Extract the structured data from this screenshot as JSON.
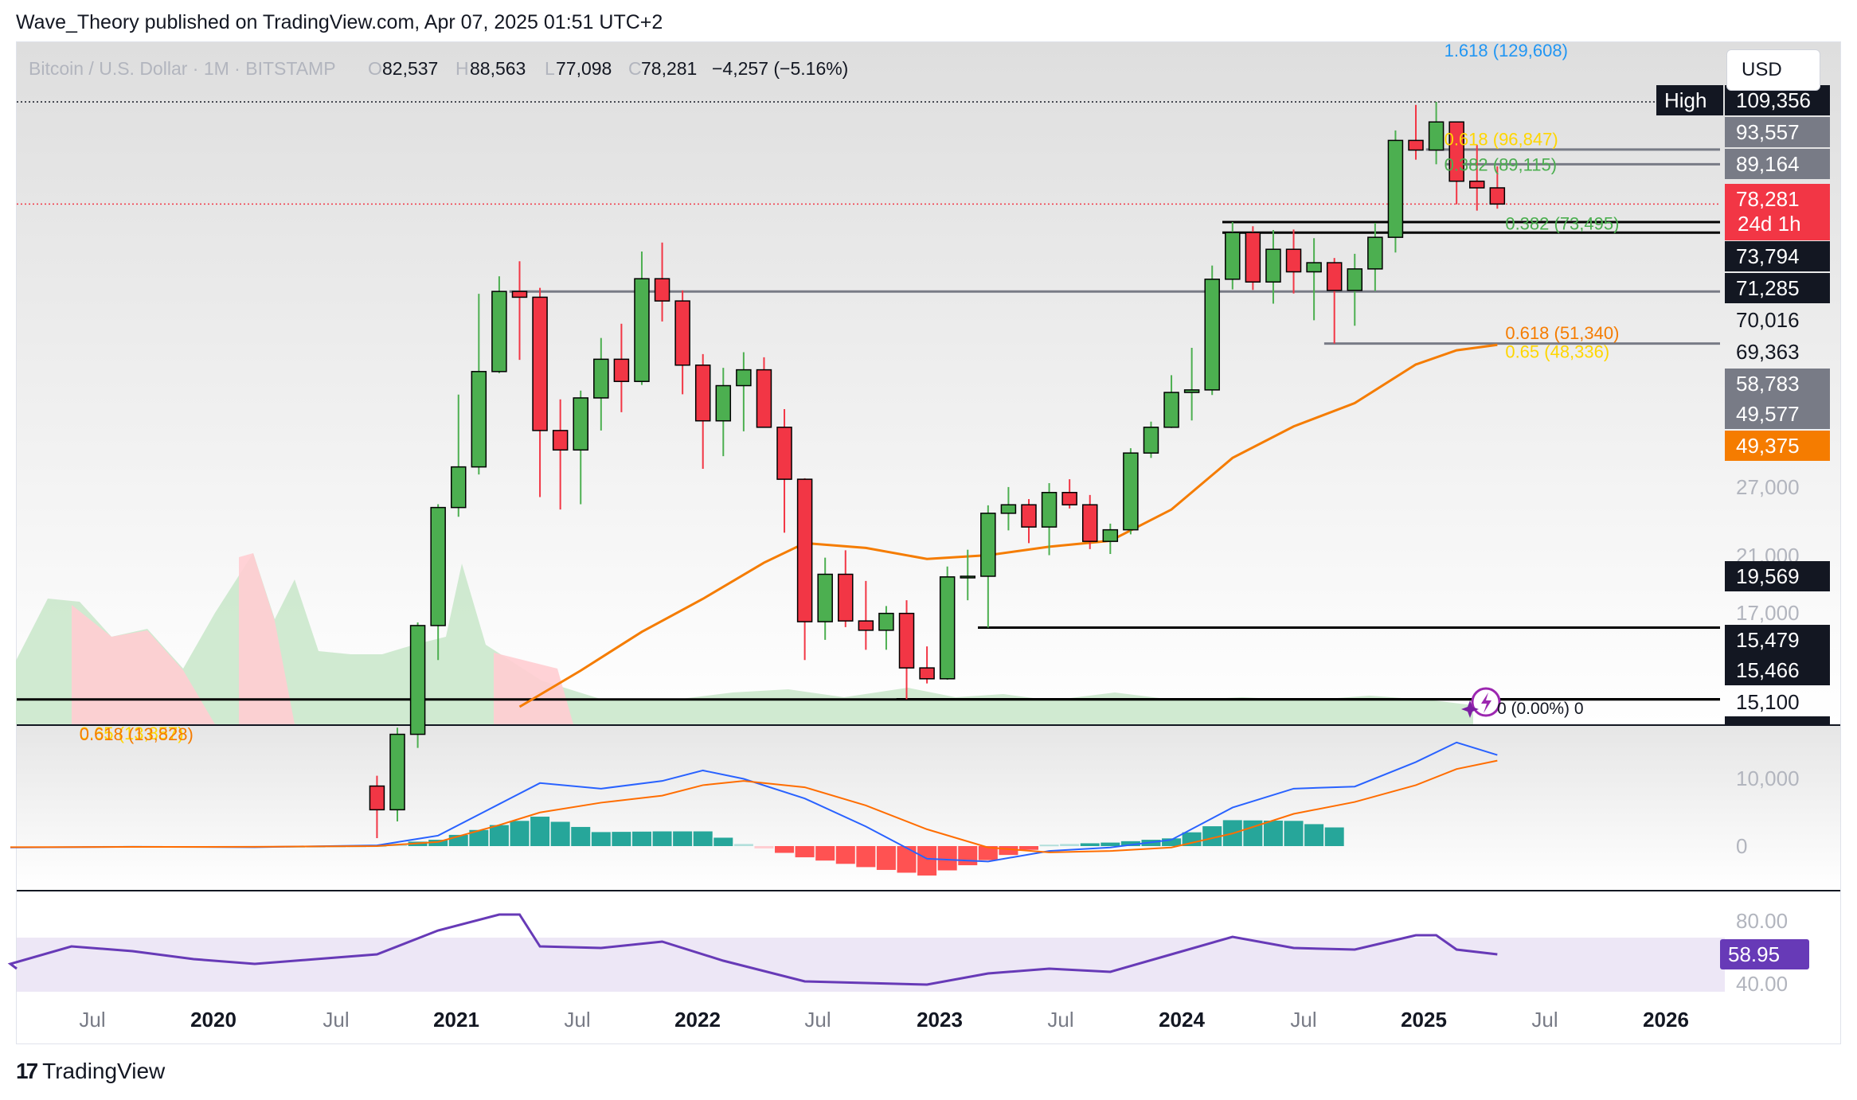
{
  "caption": "Wave_Theory published on TradingView.com, Apr 07, 2025 01:51 UTC+2",
  "header": {
    "symbol": "Bitcoin / U.S. Dollar · 1M · BITSTAMP",
    "o_label": "O",
    "o_value": "82,537",
    "h_label": "H",
    "h_value": "88,563",
    "l_label": "L",
    "l_value": "77,098",
    "c_label": "C",
    "c_value": "78,281",
    "change": "−4,257 (−5.16%)"
  },
  "currency": "USD",
  "footer": {
    "brand": "TradingView",
    "mark": "17"
  },
  "colors": {
    "up": "#4caf50",
    "down": "#f23645",
    "ema": "#f57c00",
    "macd_line": "#2962ff",
    "signal_line": "#ff6d00",
    "hist_up_strong": "#26a69a",
    "hist_up_weak": "#b2dfdb",
    "hist_down_strong": "#ff5252",
    "hist_down_weak": "#ffcdd2",
    "rsi": "#673ab7",
    "fib_green": "#4caf50",
    "fib_orange": "#f57c00",
    "fib_yellow": "#ffd600",
    "fib_blue": "#2196f3"
  },
  "chart_data": {
    "type": "candlestick",
    "title": "Bitcoin / U.S. Dollar · 1M · BITSTAMP",
    "x_ticks": [
      "Jul",
      "2020",
      "Jul",
      "2021",
      "Jul",
      "2022",
      "Jul",
      "2023",
      "Jul",
      "2024",
      "Jul",
      "2025",
      "Jul",
      "2026"
    ],
    "y_scale": "log",
    "price_axis_labels": [
      "109,356",
      "93,557",
      "89,164",
      "78,281",
      "73,794",
      "71,285",
      "70,016",
      "69,363",
      "58,783",
      "49,577",
      "49,375",
      "27,000",
      "21,000",
      "19,569",
      "17,000",
      "15,479",
      "15,466",
      "15,100"
    ],
    "high_label": "High",
    "countdown": "24d 1h",
    "candles": [
      {
        "date": "2020-09",
        "o": 11650,
        "h": 12050,
        "l": 9825,
        "c": 10780
      },
      {
        "date": "2020-10",
        "o": 10780,
        "h": 14100,
        "l": 10375,
        "c": 13800
      },
      {
        "date": "2020-11",
        "o": 13800,
        "h": 19900,
        "l": 13200,
        "c": 19700
      },
      {
        "date": "2020-12",
        "o": 19700,
        "h": 29300,
        "l": 17600,
        "c": 28990
      },
      {
        "date": "2021-01",
        "o": 28990,
        "h": 41950,
        "l": 28130,
        "c": 33110
      },
      {
        "date": "2021-02",
        "o": 33110,
        "h": 58350,
        "l": 32300,
        "c": 45240
      },
      {
        "date": "2021-03",
        "o": 45240,
        "h": 61800,
        "l": 45000,
        "c": 58800
      },
      {
        "date": "2021-04",
        "o": 58800,
        "h": 64900,
        "l": 47000,
        "c": 57700
      },
      {
        "date": "2021-05",
        "o": 57700,
        "h": 59500,
        "l": 30000,
        "c": 37300
      },
      {
        "date": "2021-06",
        "o": 37300,
        "h": 41300,
        "l": 28800,
        "c": 35000
      },
      {
        "date": "2021-07",
        "o": 35000,
        "h": 42500,
        "l": 29300,
        "c": 41500
      },
      {
        "date": "2021-08",
        "o": 41500,
        "h": 50500,
        "l": 37300,
        "c": 47100
      },
      {
        "date": "2021-09",
        "o": 47100,
        "h": 52900,
        "l": 39600,
        "c": 43800
      },
      {
        "date": "2021-10",
        "o": 43800,
        "h": 67000,
        "l": 43300,
        "c": 61300
      },
      {
        "date": "2021-11",
        "o": 61300,
        "h": 69000,
        "l": 53300,
        "c": 57000
      },
      {
        "date": "2021-12",
        "o": 57000,
        "h": 59000,
        "l": 42000,
        "c": 46200
      },
      {
        "date": "2022-01",
        "o": 46200,
        "h": 47900,
        "l": 32900,
        "c": 38500
      },
      {
        "date": "2022-02",
        "o": 38500,
        "h": 45800,
        "l": 34300,
        "c": 43200
      },
      {
        "date": "2022-03",
        "o": 43200,
        "h": 48200,
        "l": 37200,
        "c": 45500
      },
      {
        "date": "2022-04",
        "o": 45500,
        "h": 47400,
        "l": 37700,
        "c": 37700
      },
      {
        "date": "2022-05",
        "o": 37700,
        "h": 40000,
        "l": 26700,
        "c": 31800
      },
      {
        "date": "2022-06",
        "o": 31800,
        "h": 31900,
        "l": 17600,
        "c": 19950
      },
      {
        "date": "2022-07",
        "o": 19950,
        "h": 24600,
        "l": 18800,
        "c": 23300
      },
      {
        "date": "2022-08",
        "o": 23300,
        "h": 25200,
        "l": 19600,
        "c": 20000
      },
      {
        "date": "2022-09",
        "o": 20000,
        "h": 22800,
        "l": 18200,
        "c": 19400
      },
      {
        "date": "2022-10",
        "o": 19400,
        "h": 21000,
        "l": 18200,
        "c": 20500
      },
      {
        "date": "2022-11",
        "o": 20500,
        "h": 21400,
        "l": 15479,
        "c": 17150
      },
      {
        "date": "2022-12",
        "o": 17150,
        "h": 18400,
        "l": 16300,
        "c": 16550
      },
      {
        "date": "2023-01",
        "o": 16550,
        "h": 23900,
        "l": 16500,
        "c": 23100
      },
      {
        "date": "2023-02",
        "o": 23100,
        "h": 25250,
        "l": 21400,
        "c": 23150
      },
      {
        "date": "2023-03",
        "o": 23150,
        "h": 29200,
        "l": 19569,
        "c": 28450
      },
      {
        "date": "2023-04",
        "o": 28450,
        "h": 31000,
        "l": 26900,
        "c": 29250
      },
      {
        "date": "2023-05",
        "o": 29250,
        "h": 29800,
        "l": 25800,
        "c": 27200
      },
      {
        "date": "2023-06",
        "o": 27200,
        "h": 31400,
        "l": 24800,
        "c": 30450
      },
      {
        "date": "2023-07",
        "o": 30450,
        "h": 31800,
        "l": 28900,
        "c": 29250
      },
      {
        "date": "2023-08",
        "o": 29250,
        "h": 30200,
        "l": 25300,
        "c": 25950
      },
      {
        "date": "2023-09",
        "o": 25950,
        "h": 27500,
        "l": 24900,
        "c": 26950
      },
      {
        "date": "2023-10",
        "o": 26950,
        "h": 35200,
        "l": 26550,
        "c": 34650
      },
      {
        "date": "2023-11",
        "o": 34650,
        "h": 38400,
        "l": 34100,
        "c": 37700
      },
      {
        "date": "2023-12",
        "o": 37700,
        "h": 44700,
        "l": 37600,
        "c": 42250
      },
      {
        "date": "2024-01",
        "o": 42250,
        "h": 48900,
        "l": 38550,
        "c": 42600
      },
      {
        "date": "2024-02",
        "o": 42600,
        "h": 64000,
        "l": 41900,
        "c": 61200
      },
      {
        "date": "2024-03",
        "o": 61200,
        "h": 73794,
        "l": 59200,
        "c": 71300
      },
      {
        "date": "2024-04",
        "o": 71300,
        "h": 72800,
        "l": 59100,
        "c": 60650
      },
      {
        "date": "2024-05",
        "o": 60650,
        "h": 71900,
        "l": 56500,
        "c": 67500
      },
      {
        "date": "2024-06",
        "o": 67500,
        "h": 72000,
        "l": 58400,
        "c": 62700
      },
      {
        "date": "2024-07",
        "o": 62700,
        "h": 70000,
        "l": 53500,
        "c": 64600
      },
      {
        "date": "2024-08",
        "o": 64600,
        "h": 65600,
        "l": 49577,
        "c": 59000
      },
      {
        "date": "2024-09",
        "o": 59000,
        "h": 66500,
        "l": 52550,
        "c": 63300
      },
      {
        "date": "2024-10",
        "o": 63300,
        "h": 73600,
        "l": 58900,
        "c": 70200
      },
      {
        "date": "2024-11",
        "o": 70200,
        "h": 99600,
        "l": 66800,
        "c": 96400
      },
      {
        "date": "2024-12",
        "o": 96400,
        "h": 108300,
        "l": 90500,
        "c": 93400
      },
      {
        "date": "2025-01",
        "o": 93400,
        "h": 109356,
        "l": 89150,
        "c": 102400
      },
      {
        "date": "2025-02",
        "o": 102400,
        "h": 102500,
        "l": 78200,
        "c": 84350
      },
      {
        "date": "2025-03",
        "o": 84350,
        "h": 95000,
        "l": 76600,
        "c": 82537
      },
      {
        "date": "2025-04",
        "o": 82537,
        "h": 88563,
        "l": 77098,
        "c": 78281
      }
    ],
    "ema_line": [
      {
        "date": "2021-04",
        "v": 15100
      },
      {
        "date": "2021-07",
        "v": 17000
      },
      {
        "date": "2021-10",
        "v": 19300
      },
      {
        "date": "2022-01",
        "v": 21500
      },
      {
        "date": "2022-04",
        "v": 24200
      },
      {
        "date": "2022-06",
        "v": 25800
      },
      {
        "date": "2022-09",
        "v": 25400
      },
      {
        "date": "2022-12",
        "v": 24500
      },
      {
        "date": "2023-03",
        "v": 24800
      },
      {
        "date": "2023-06",
        "v": 25500
      },
      {
        "date": "2023-09",
        "v": 26000
      },
      {
        "date": "2023-12",
        "v": 28800
      },
      {
        "date": "2024-03",
        "v": 34100
      },
      {
        "date": "2024-06",
        "v": 37800
      },
      {
        "date": "2024-09",
        "v": 40800
      },
      {
        "date": "2024-12",
        "v": 46300
      },
      {
        "date": "2025-02",
        "v": 48500
      },
      {
        "date": "2025-04",
        "v": 49375
      }
    ],
    "horizontal_levels": [
      {
        "value": 73794,
        "color": "#000000",
        "from": "2024-03"
      },
      {
        "value": 71285,
        "color": "#000000",
        "from": "2024-03"
      },
      {
        "value": 58783,
        "color": "#787b86",
        "from": "2021-04"
      },
      {
        "value": 49577,
        "color": "#787b86",
        "from": "2024-08"
      },
      {
        "value": 93557,
        "color": "#787b86",
        "from": "2025-01"
      },
      {
        "value": 89164,
        "color": "#787b86",
        "from": "2025-02"
      },
      {
        "value": 19569,
        "color": "#000000",
        "from": "2023-03"
      },
      {
        "value": 15479,
        "color": "#000000",
        "from": "2022-11"
      },
      {
        "value": 15466,
        "color": "#000000",
        "from": "2019-03"
      },
      {
        "value": 109356,
        "color": "#131722",
        "from": "2019-03",
        "dotted": true
      },
      {
        "value": 78281,
        "color": "#f23645",
        "from": "2019-03",
        "dotted": true
      }
    ],
    "fib_labels": [
      {
        "text": "1.618 (129,608)",
        "color": "#2196f3",
        "price": 129608,
        "date": "2025-01"
      },
      {
        "text": "0.618 (96,847)",
        "color": "#ffd600",
        "price": 96847,
        "date": "2025-01"
      },
      {
        "text": "0.382 (89,115)",
        "color": "#4caf50",
        "price": 89115,
        "date": "2025-01"
      },
      {
        "text": "0.382 (73,495)",
        "color": "#4caf50",
        "price": 73495,
        "date": "2025-04"
      },
      {
        "text": "0.618 (51,340)",
        "color": "#f57c00",
        "price": 51340,
        "date": "2025-04"
      },
      {
        "text": "0.65 (48,336)",
        "color": "#ffd600",
        "price": 48336,
        "date": "2025-04"
      },
      {
        "text": "0.65 (13,857)",
        "color": "#ffd600",
        "price": 13857,
        "date": "2019-06"
      },
      {
        "text": "0.618 (13,828)",
        "color": "#f57c00",
        "price": 13828,
        "date": "2019-06"
      }
    ],
    "volume_note": "0 (0.00%) 0",
    "macd_axis": [
      "10,000",
      "0"
    ],
    "rsi_axis": [
      "80.00",
      "40.00"
    ],
    "rsi_value": "58.95",
    "macd": [
      {
        "date": "2019-03",
        "m": -200,
        "s": -150
      },
      {
        "date": "2019-09",
        "m": -100,
        "s": -120
      },
      {
        "date": "2020-03",
        "m": -150,
        "s": -100
      },
      {
        "date": "2020-09",
        "m": 100,
        "s": 0
      },
      {
        "date": "2020-12",
        "m": 1500,
        "s": 600
      },
      {
        "date": "2021-03",
        "m": 6000,
        "s": 3000
      },
      {
        "date": "2021-05",
        "m": 9000,
        "s": 4800
      },
      {
        "date": "2021-08",
        "m": 8200,
        "s": 6200
      },
      {
        "date": "2021-11",
        "m": 9300,
        "s": 7200
      },
      {
        "date": "2022-01",
        "m": 10800,
        "s": 8700
      },
      {
        "date": "2022-03",
        "m": 9600,
        "s": 9300
      },
      {
        "date": "2022-06",
        "m": 6800,
        "s": 8400
      },
      {
        "date": "2022-09",
        "m": 2800,
        "s": 5800
      },
      {
        "date": "2022-12",
        "m": -1800,
        "s": 2400
      },
      {
        "date": "2023-03",
        "m": -2200,
        "s": -200
      },
      {
        "date": "2023-06",
        "m": -700,
        "s": -900
      },
      {
        "date": "2023-09",
        "m": -200,
        "s": -700
      },
      {
        "date": "2023-12",
        "m": 900,
        "s": -200
      },
      {
        "date": "2024-03",
        "m": 5500,
        "s": 1800
      },
      {
        "date": "2024-06",
        "m": 8200,
        "s": 4600
      },
      {
        "date": "2024-09",
        "m": 8500,
        "s": 6300
      },
      {
        "date": "2024-12",
        "m": 12000,
        "s": 8700
      },
      {
        "date": "2025-02",
        "m": 14800,
        "s": 11000
      },
      {
        "date": "2025-04",
        "m": 13000,
        "s": 12200
      }
    ],
    "rsi": [
      {
        "date": "2019-03",
        "v": 53
      },
      {
        "date": "2019-06",
        "v": 64
      },
      {
        "date": "2019-09",
        "v": 61
      },
      {
        "date": "2019-12",
        "v": 56
      },
      {
        "date": "2020-03",
        "v": 53
      },
      {
        "date": "2020-06",
        "v": 56
      },
      {
        "date": "2020-09",
        "v": 59
      },
      {
        "date": "2020-12",
        "v": 74
      },
      {
        "date": "2021-03",
        "v": 84
      },
      {
        "date": "2021-04",
        "v": 84
      },
      {
        "date": "2021-05",
        "v": 64
      },
      {
        "date": "2021-08",
        "v": 63
      },
      {
        "date": "2021-11",
        "v": 67
      },
      {
        "date": "2022-02",
        "v": 55
      },
      {
        "date": "2022-06",
        "v": 42
      },
      {
        "date": "2022-09",
        "v": 41
      },
      {
        "date": "2022-12",
        "v": 40
      },
      {
        "date": "2023-03",
        "v": 47
      },
      {
        "date": "2023-06",
        "v": 50
      },
      {
        "date": "2023-09",
        "v": 48
      },
      {
        "date": "2023-12",
        "v": 59
      },
      {
        "date": "2024-03",
        "v": 70
      },
      {
        "date": "2024-06",
        "v": 63
      },
      {
        "date": "2024-09",
        "v": 62
      },
      {
        "date": "2024-12",
        "v": 71
      },
      {
        "date": "2025-01",
        "v": 71
      },
      {
        "date": "2025-02",
        "v": 62
      },
      {
        "date": "2025-04",
        "v": 59
      }
    ]
  }
}
